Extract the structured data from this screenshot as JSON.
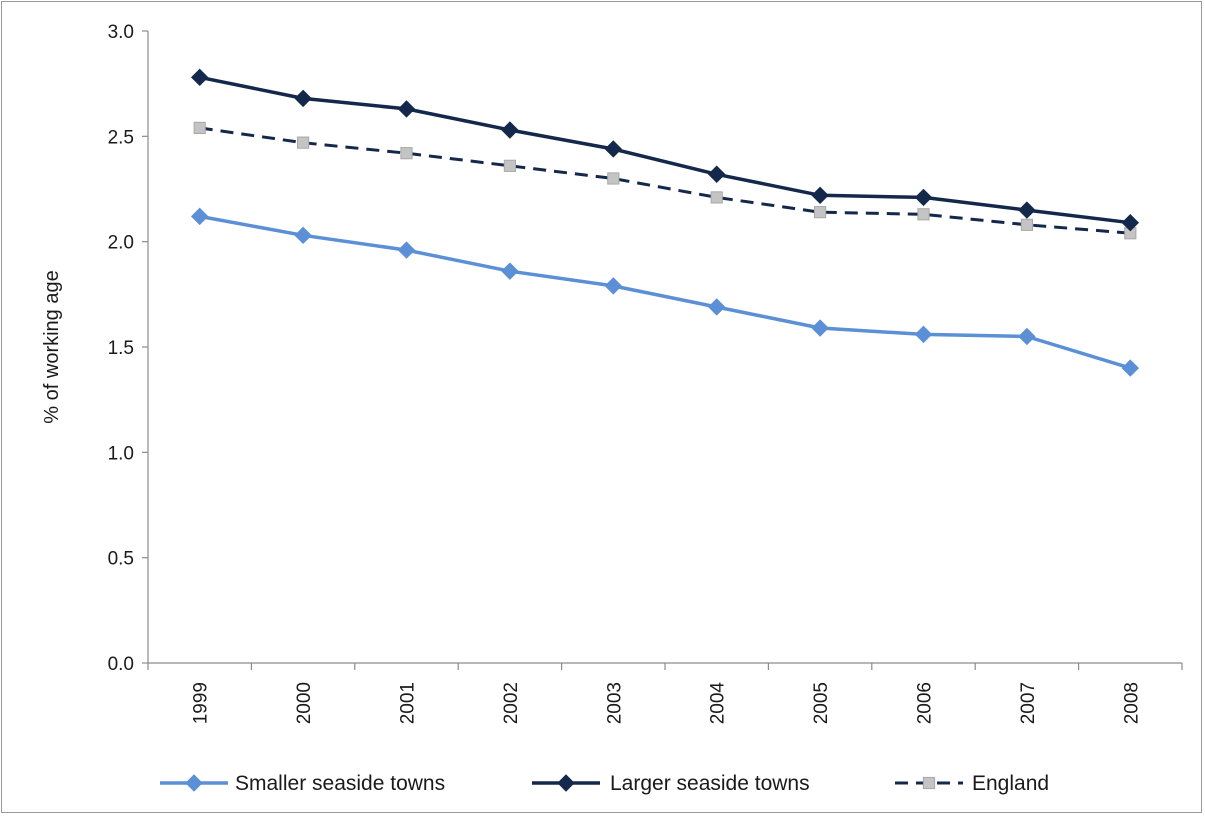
{
  "chart_data": {
    "type": "line",
    "title": "",
    "xlabel": "",
    "ylabel": "% of working age",
    "ylim": [
      0,
      3.0
    ],
    "yticks": [
      "0.0",
      "0.5",
      "1.0",
      "1.5",
      "2.0",
      "2.5",
      "3.0"
    ],
    "categories": [
      "1999",
      "2000",
      "2001",
      "2002",
      "2003",
      "2004",
      "2005",
      "2006",
      "2007",
      "2008"
    ],
    "grid": false,
    "legend_position": "bottom",
    "series": [
      {
        "name": "Smaller seaside towns",
        "values": [
          2.12,
          2.03,
          1.96,
          1.86,
          1.79,
          1.69,
          1.59,
          1.56,
          1.55,
          1.4
        ],
        "color": "#5b8fd6",
        "marker": "diamond",
        "dash": "solid"
      },
      {
        "name": "Larger seaside towns",
        "values": [
          2.78,
          2.68,
          2.63,
          2.53,
          2.44,
          2.32,
          2.22,
          2.21,
          2.15,
          2.09
        ],
        "color": "#14284b",
        "marker": "diamond",
        "dash": "solid"
      },
      {
        "name": "England",
        "values": [
          2.54,
          2.47,
          2.42,
          2.36,
          2.3,
          2.21,
          2.14,
          2.13,
          2.08,
          2.04
        ],
        "color": "#14284b",
        "marker": "square",
        "marker_color": "#c4c4c4",
        "dash": "dashed"
      }
    ]
  }
}
